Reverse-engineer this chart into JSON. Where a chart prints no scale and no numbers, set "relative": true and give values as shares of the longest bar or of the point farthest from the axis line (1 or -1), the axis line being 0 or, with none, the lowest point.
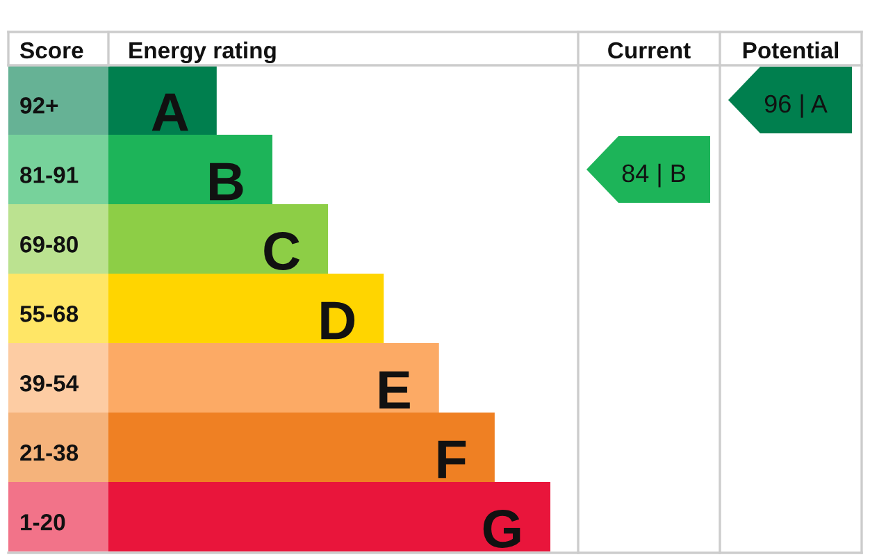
{
  "chart_data": {
    "type": "bar",
    "orientation": "horizontal",
    "relative": true,
    "ylabel": "Score",
    "xlabel": "Energy rating",
    "categories": [
      "92+",
      "81-91",
      "69-80",
      "55-68",
      "39-54",
      "21-38",
      "1-20"
    ],
    "values": [
      0.245,
      0.371,
      0.497,
      0.623,
      0.748,
      0.874,
      1
    ],
    "colors": [
      "#007f4e",
      "#1db459",
      "#8dce46",
      "#ffd500",
      "#fcaa65",
      "#ef8023",
      "#e9153b"
    ],
    "annotations": [
      {
        "text": "A",
        "x": 0.245,
        "y": "92+"
      },
      {
        "text": "B",
        "x": 0.371,
        "y": "81-91"
      },
      {
        "text": "C",
        "x": 0.497,
        "y": "69-80"
      },
      {
        "text": "D",
        "x": 0.623,
        "y": "55-68"
      },
      {
        "text": "E",
        "x": 0.748,
        "y": "39-54"
      },
      {
        "text": "F",
        "x": 0.874,
        "y": "21-38"
      },
      {
        "text": "G",
        "x": 1,
        "y": "1-20"
      },
      "Current",
      "84 | B",
      "Potential",
      "96 | A"
    ]
  }
}
